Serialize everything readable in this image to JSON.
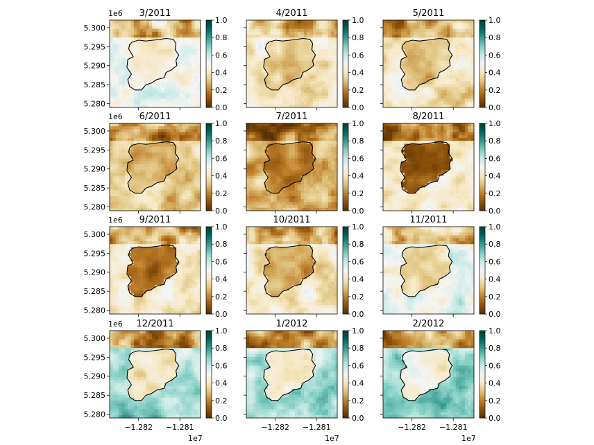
{
  "figure": {
    "panel_titles": [
      "3/2011",
      "4/2011",
      "5/2011",
      "6/2011",
      "7/2011",
      "8/2011",
      "9/2011",
      "10/2011",
      "11/2011",
      "12/2011",
      "1/2012",
      "2/2012"
    ],
    "y_offset_label": "1e6",
    "x_offset_label": "1e7"
  },
  "chart_data": {
    "type": "heatmap",
    "layout": "4x3 grid of map panels",
    "colormap": {
      "name": "BrBG",
      "low": "#543005",
      "mid": "#f5f5f5",
      "high": "#003c30"
    },
    "colorbar": {
      "ticks": [
        "0.0",
        "0.2",
        "0.4",
        "0.6",
        "0.8",
        "1.0"
      ],
      "vmin": 0.0,
      "vmax": 1.0
    },
    "y_axis": {
      "ticks": [
        "5.280",
        "5.285",
        "5.290",
        "5.295",
        "5.300"
      ],
      "values": [
        5.28,
        5.285,
        5.29,
        5.295,
        5.3
      ],
      "range": [
        5.279,
        5.302
      ],
      "offset": "1e6"
    },
    "x_axis": {
      "ticks": [
        "−1.282",
        "−1.281"
      ],
      "values": [
        -1.282,
        -1.281
      ],
      "range": [
        -1.2827,
        -1.2805
      ],
      "offset": "1e7"
    },
    "boundary": "black outline of burned area, identical in all panels",
    "panels": [
      {
        "title": "3/2011",
        "inside_mean": 0.45,
        "outside_mean": 0.5,
        "north_edge": 0.35
      },
      {
        "title": "4/2011",
        "inside_mean": 0.33,
        "outside_mean": 0.42,
        "north_edge": 0.3
      },
      {
        "title": "5/2011",
        "inside_mean": 0.3,
        "outside_mean": 0.4,
        "north_edge": 0.28
      },
      {
        "title": "6/2011",
        "inside_mean": 0.25,
        "outside_mean": 0.35,
        "north_edge": 0.22
      },
      {
        "title": "7/2011",
        "inside_mean": 0.2,
        "outside_mean": 0.3,
        "north_edge": 0.18
      },
      {
        "title": "8/2011",
        "inside_mean": 0.1,
        "outside_mean": 0.42,
        "north_edge": 0.2
      },
      {
        "title": "9/2011",
        "inside_mean": 0.15,
        "outside_mean": 0.4,
        "north_edge": 0.25
      },
      {
        "title": "10/2011",
        "inside_mean": 0.25,
        "outside_mean": 0.42,
        "north_edge": 0.25
      },
      {
        "title": "11/2011",
        "inside_mean": 0.35,
        "outside_mean": 0.52,
        "north_edge": 0.3
      },
      {
        "title": "12/2011",
        "inside_mean": 0.4,
        "outside_mean": 0.62,
        "north_edge": 0.2
      },
      {
        "title": "1/2012",
        "inside_mean": 0.42,
        "outside_mean": 0.62,
        "north_edge": 0.22
      },
      {
        "title": "2/2012",
        "inside_mean": 0.45,
        "outside_mean": 0.66,
        "north_edge": 0.25
      }
    ]
  }
}
